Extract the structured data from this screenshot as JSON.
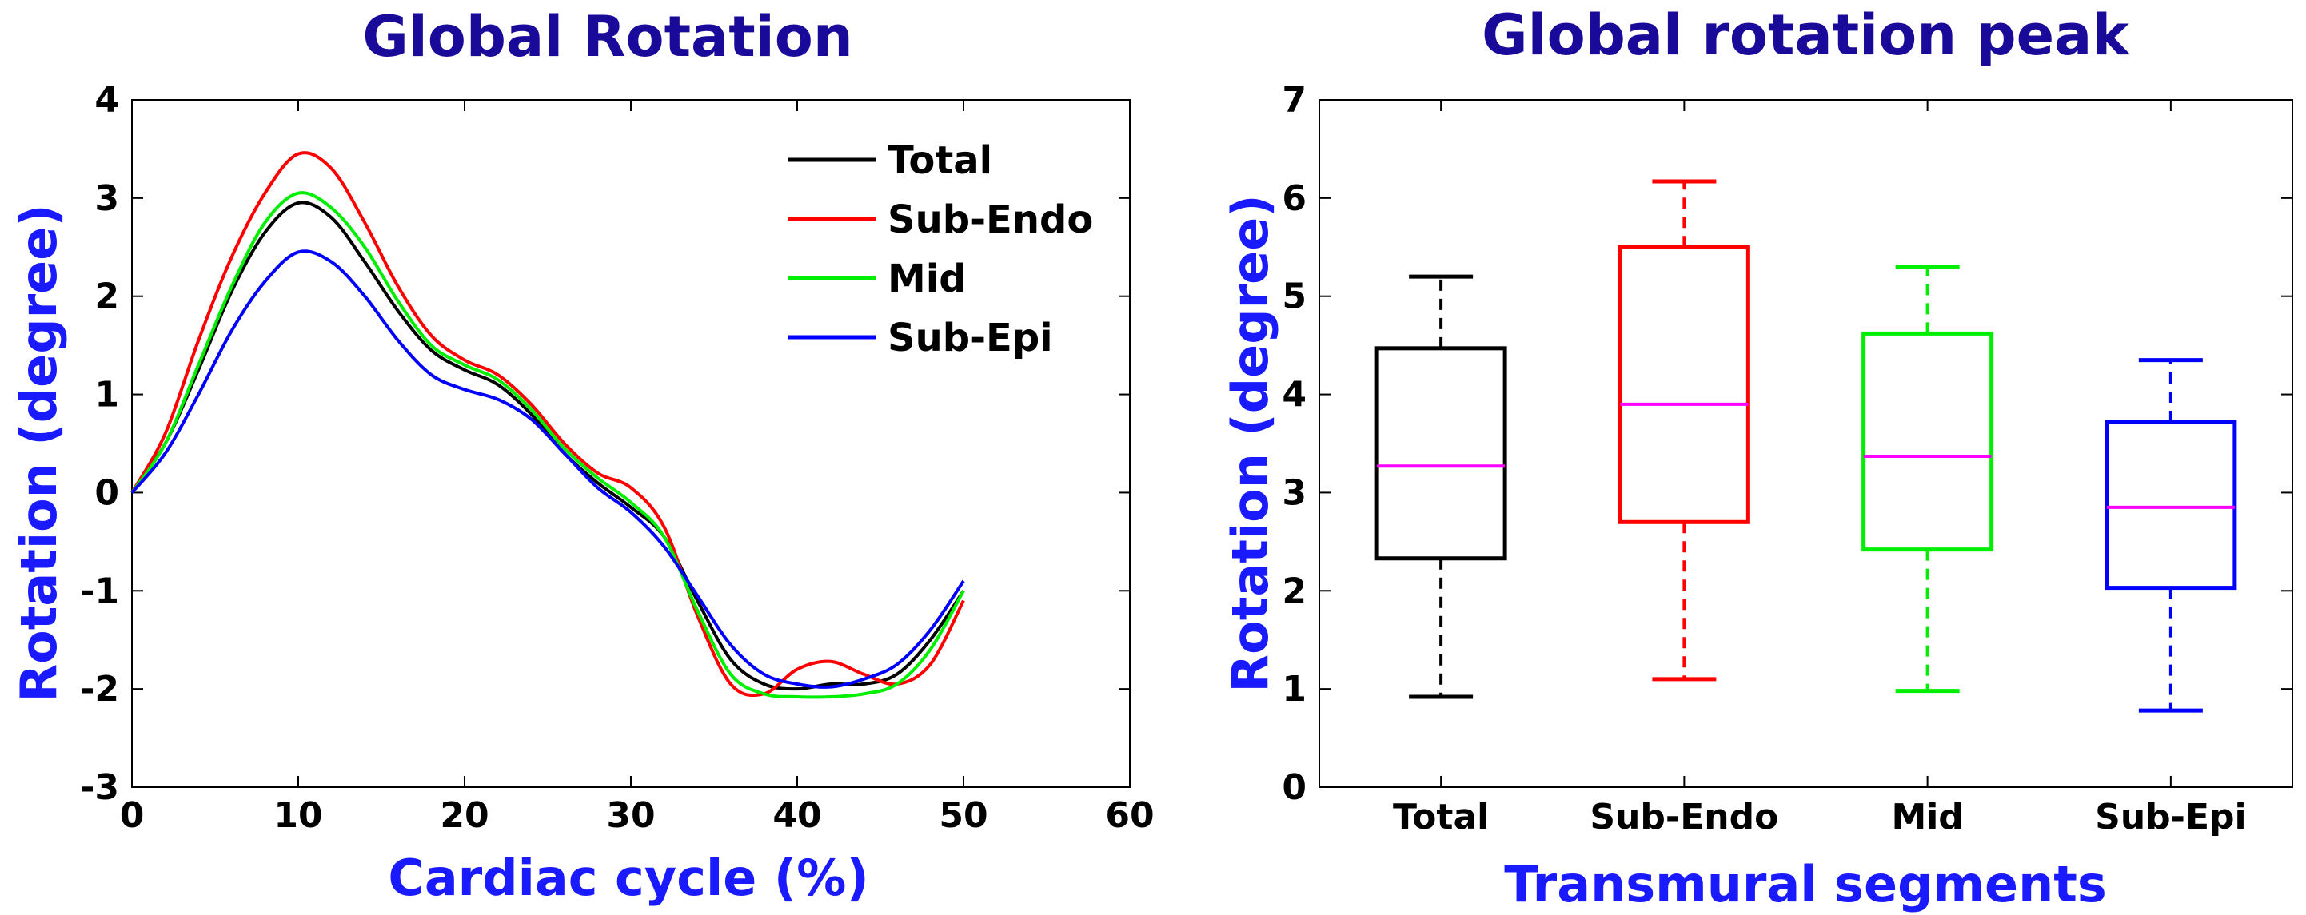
{
  "colors": {
    "title": "#1a0a99",
    "axis_label": "#1a1aff",
    "median": "#ff00ff"
  },
  "chart_data": [
    {
      "type": "line",
      "title": "Global Rotation",
      "xlabel": "Cardiac cycle (%)",
      "ylabel": "Rotation (degree)",
      "xlim": [
        0,
        60
      ],
      "ylim": [
        -3,
        4
      ],
      "xticks": [
        "0",
        "10",
        "20",
        "30",
        "40",
        "50",
        "60"
      ],
      "yticks": [
        "4",
        "3",
        "2",
        "1",
        "0",
        "-1",
        "-2",
        "-3"
      ],
      "legend_position": "top-right",
      "grid": false,
      "series": [
        {
          "name": "Total",
          "color": "#000000",
          "x": [
            0,
            2,
            4,
            6,
            8,
            10,
            12,
            14,
            16,
            18,
            20,
            22,
            24,
            26,
            28,
            30,
            32,
            34,
            36,
            38,
            40,
            42,
            44,
            46,
            48,
            50
          ],
          "y": [
            0,
            0.5,
            1.25,
            2.05,
            2.65,
            2.95,
            2.8,
            2.35,
            1.85,
            1.45,
            1.25,
            1.1,
            0.8,
            0.4,
            0.1,
            -0.15,
            -0.45,
            -1.1,
            -1.7,
            -1.95,
            -2.0,
            -1.95,
            -1.95,
            -1.85,
            -1.5,
            -1.0
          ]
        },
        {
          "name": "Sub-Endo",
          "color": "#ff0000",
          "x": [
            0,
            2,
            4,
            6,
            8,
            10,
            12,
            14,
            16,
            18,
            20,
            22,
            24,
            26,
            28,
            30,
            32,
            34,
            36,
            38,
            40,
            42,
            44,
            46,
            48,
            50
          ],
          "y": [
            0,
            0.6,
            1.55,
            2.4,
            3.05,
            3.45,
            3.3,
            2.75,
            2.1,
            1.6,
            1.35,
            1.2,
            0.9,
            0.5,
            0.2,
            0.05,
            -0.35,
            -1.25,
            -1.95,
            -2.05,
            -1.8,
            -1.72,
            -1.85,
            -1.95,
            -1.75,
            -1.1
          ]
        },
        {
          "name": "Mid",
          "color": "#00ee00",
          "x": [
            0,
            2,
            4,
            6,
            8,
            10,
            12,
            14,
            16,
            18,
            20,
            22,
            24,
            26,
            28,
            30,
            32,
            34,
            36,
            38,
            40,
            42,
            44,
            46,
            48,
            50
          ],
          "y": [
            0,
            0.5,
            1.3,
            2.1,
            2.75,
            3.05,
            2.9,
            2.5,
            1.95,
            1.5,
            1.3,
            1.15,
            0.85,
            0.45,
            0.15,
            -0.1,
            -0.45,
            -1.2,
            -1.85,
            -2.05,
            -2.08,
            -2.08,
            -2.05,
            -1.95,
            -1.6,
            -1.0
          ]
        },
        {
          "name": "Sub-Epi",
          "color": "#0000ff",
          "x": [
            0,
            2,
            4,
            6,
            8,
            10,
            12,
            14,
            16,
            18,
            20,
            22,
            24,
            26,
            28,
            30,
            32,
            34,
            36,
            38,
            40,
            42,
            44,
            46,
            48,
            50
          ],
          "y": [
            0,
            0.4,
            1.0,
            1.65,
            2.15,
            2.45,
            2.35,
            2.0,
            1.55,
            1.2,
            1.05,
            0.95,
            0.75,
            0.4,
            0.05,
            -0.2,
            -0.55,
            -1.05,
            -1.55,
            -1.85,
            -1.95,
            -1.98,
            -1.9,
            -1.75,
            -1.4,
            -0.9
          ]
        }
      ]
    },
    {
      "type": "box",
      "title": "Global rotation peak",
      "xlabel": "Transmural segments",
      "ylabel": "Rotation (degree)",
      "ylim": [
        0,
        7
      ],
      "yticks": [
        "7",
        "6",
        "5",
        "4",
        "3",
        "2",
        "1",
        "0"
      ],
      "grid": false,
      "categories": [
        "Total",
        "Sub-Endo",
        "Mid",
        "Sub-Epi"
      ],
      "boxes": [
        {
          "name": "Total",
          "color": "#000000",
          "min": 0.92,
          "q1": 2.33,
          "median": 3.27,
          "q3": 4.47,
          "max": 5.2
        },
        {
          "name": "Sub-Endo",
          "color": "#ff0000",
          "min": 1.1,
          "q1": 2.7,
          "median": 3.9,
          "q3": 5.5,
          "max": 6.17
        },
        {
          "name": "Mid",
          "color": "#00ee00",
          "min": 0.98,
          "q1": 2.42,
          "median": 3.37,
          "q3": 4.62,
          "max": 5.3
        },
        {
          "name": "Sub-Epi",
          "color": "#0000ff",
          "min": 0.78,
          "q1": 2.03,
          "median": 2.85,
          "q3": 3.72,
          "max": 4.35
        }
      ]
    }
  ]
}
